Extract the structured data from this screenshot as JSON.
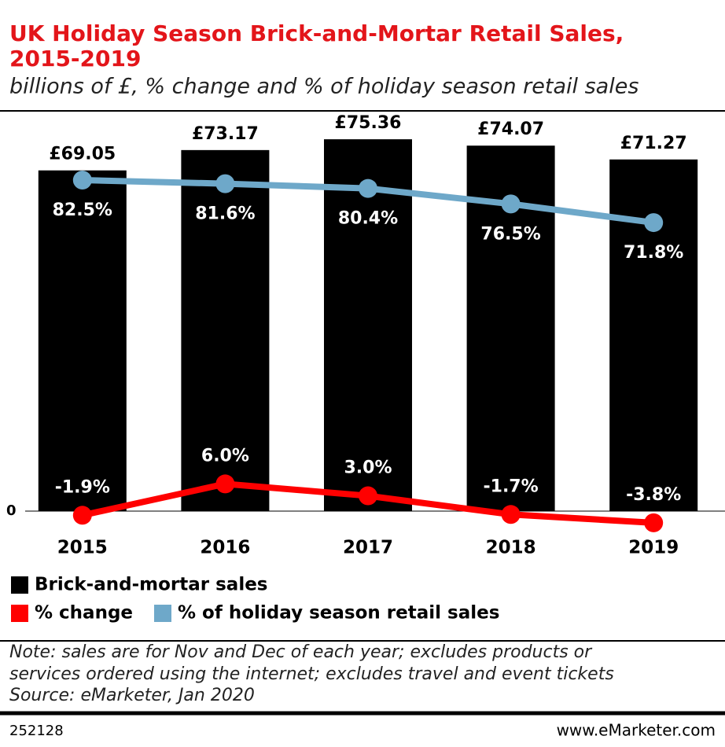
{
  "chart_data": {
    "type": "bar",
    "title": [
      "UK Holiday Season Brick-and-Mortar Retail Sales,",
      "2015-2019"
    ],
    "subtitle": "billions of £, % change and % of holiday season retail sales",
    "categories": [
      "2015",
      "2016",
      "2017",
      "2018",
      "2019"
    ],
    "ylim": [
      0,
      80
    ],
    "yticks": [
      0
    ],
    "y2lim": [
      -0.85,
      98.55
    ],
    "series": [
      {
        "name": "Brick-and-mortar sales",
        "type": "bar",
        "color": "#000000",
        "values": [
          69.05,
          73.17,
          75.36,
          74.07,
          71.27
        ],
        "value_labels": [
          "£69.05",
          "£73.17",
          "£75.36",
          "£74.07",
          "£71.27"
        ]
      },
      {
        "name": "% change",
        "type": "line",
        "axis": "y2",
        "color": "#ff0000",
        "values": [
          -1.9,
          6.0,
          3.0,
          -1.7,
          -3.8
        ],
        "value_labels": [
          "-1.9%",
          "6.0%",
          "3.0%",
          "-1.7%",
          "-3.8%"
        ]
      },
      {
        "name": "% of holiday season retail sales",
        "type": "line",
        "axis": "y2",
        "color": "#6ea8c9",
        "values": [
          82.5,
          81.6,
          80.4,
          76.5,
          71.8
        ],
        "value_labels": [
          "82.5%",
          "81.6%",
          "80.4%",
          "76.5%",
          "71.8%"
        ]
      }
    ],
    "note": [
      "Note: sales are for Nov and Dec of each year; excludes products or",
      "services ordered using the internet; excludes travel and event tickets",
      "Source: eMarketer, Jan 2020"
    ],
    "chart_id": "252128",
    "website": "www.eMarketer.com"
  }
}
